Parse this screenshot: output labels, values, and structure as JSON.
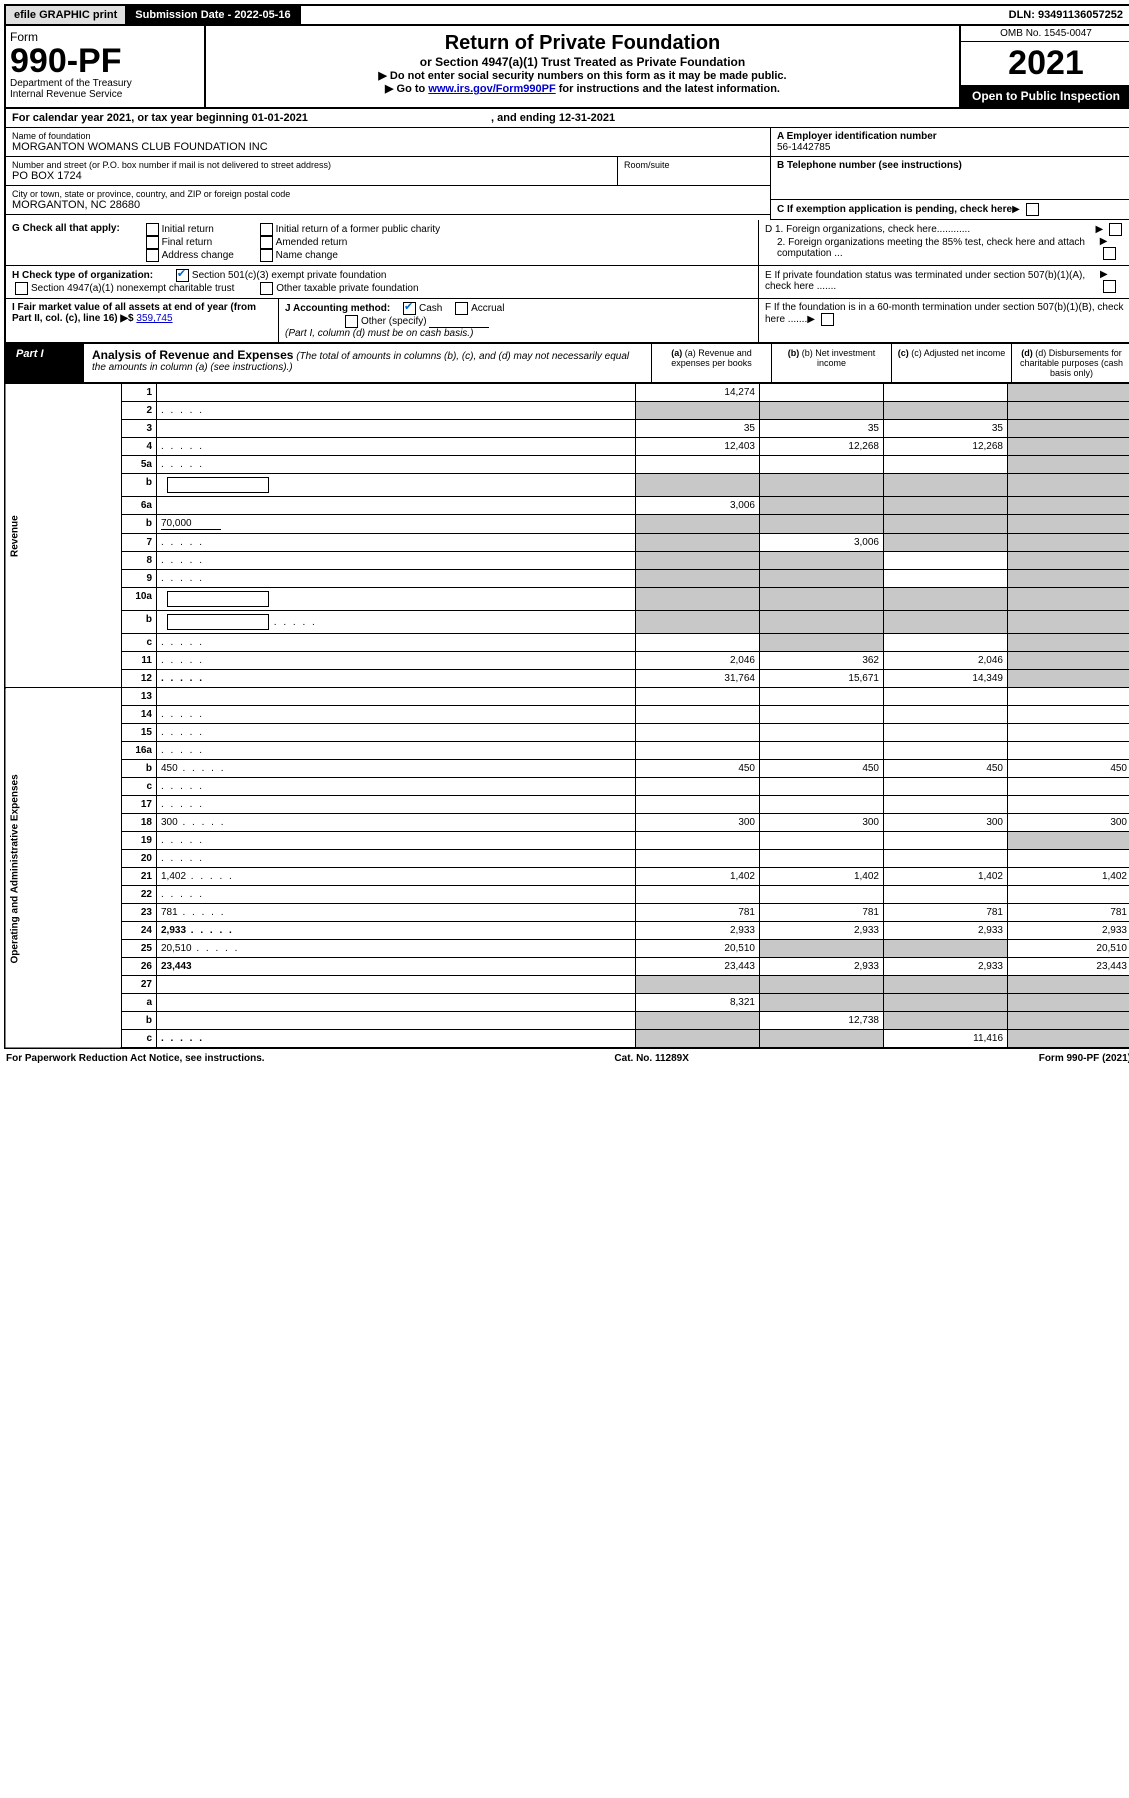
{
  "topbar": {
    "efile": "efile GRAPHIC print",
    "submission": "Submission Date - 2022-05-16",
    "dln": "DLN: 93491136057252"
  },
  "header": {
    "form_word": "Form",
    "form_num": "990-PF",
    "dept": "Department of the Treasury\nInternal Revenue Service",
    "title": "Return of Private Foundation",
    "subtitle": "or Section 4947(a)(1) Trust Treated as Private Foundation",
    "instr1": "▶ Do not enter social security numbers on this form as it may be made public.",
    "instr2_pre": "▶ Go to ",
    "instr2_link": "www.irs.gov/Form990PF",
    "instr2_post": " for instructions and the latest information.",
    "omb": "OMB No. 1545-0047",
    "year": "2021",
    "open": "Open to Public Inspection"
  },
  "calendar": {
    "text_pre": "For calendar year 2021, or tax year beginning ",
    "begin": "01-01-2021",
    "text_mid": " , and ending ",
    "end": "12-31-2021"
  },
  "entity": {
    "name_label": "Name of foundation",
    "name": "MORGANTON WOMANS CLUB FOUNDATION INC",
    "addr_label": "Number and street (or P.O. box number if mail is not delivered to street address)",
    "addr": "PO BOX 1724",
    "room_label": "Room/suite",
    "city_label": "City or town, state or province, country, and ZIP or foreign postal code",
    "city": "MORGANTON, NC  28680",
    "a_label": "A Employer identification number",
    "a_val": "56-1442785",
    "b_label": "B Telephone number (see instructions)",
    "c_label": "C If exemption application is pending, check here",
    "d1": "D 1. Foreign organizations, check here............",
    "d2": "2. Foreign organizations meeting the 85% test, check here and attach computation ...",
    "e": "E  If private foundation status was terminated under section 507(b)(1)(A), check here .......",
    "f": "F  If the foundation is in a 60-month termination under section 507(b)(1)(B), check here .......",
    "g_label": "G Check all that apply:",
    "g_opts": [
      "Initial return",
      "Final return",
      "Address change",
      "Initial return of a former public charity",
      "Amended return",
      "Name change"
    ],
    "h_label": "H Check type of organization:",
    "h_opt1": "Section 501(c)(3) exempt private foundation",
    "h_opt2": "Section 4947(a)(1) nonexempt charitable trust",
    "h_opt3": "Other taxable private foundation",
    "i_label": "I Fair market value of all assets at end of year (from Part II, col. (c), line 16) ▶$ ",
    "i_val": "359,745",
    "j_label": "J Accounting method:",
    "j_cash": "Cash",
    "j_accrual": "Accrual",
    "j_other": "Other (specify)",
    "j_note": "(Part I, column (d) must be on cash basis.)"
  },
  "part1": {
    "tag": "Part I",
    "title": "Analysis of Revenue and Expenses",
    "note": "(The total of amounts in columns (b), (c), and (d) may not necessarily equal the amounts in column (a) (see instructions).)",
    "col_a": "(a)  Revenue and expenses per books",
    "col_b": "(b)  Net investment income",
    "col_c": "(c)  Adjusted net income",
    "col_d": "(d)  Disbursements for charitable purposes (cash basis only)"
  },
  "side": {
    "rev": "Revenue",
    "exp": "Operating and Administrative Expenses"
  },
  "rows": [
    {
      "n": "1",
      "d": "",
      "a": "14,274",
      "b": "",
      "c": "",
      "d_shade": true
    },
    {
      "n": "2",
      "d": "",
      "a": "",
      "b": "",
      "c": "",
      "a_shade": true,
      "b_shade": true,
      "c_shade": true,
      "d_shade": true,
      "dots": true
    },
    {
      "n": "3",
      "d": "",
      "a": "35",
      "b": "35",
      "c": "35",
      "d_shade": true
    },
    {
      "n": "4",
      "d": "",
      "a": "12,403",
      "b": "12,268",
      "c": "12,268",
      "d_shade": true,
      "dots": true
    },
    {
      "n": "5a",
      "d": "",
      "a": "",
      "b": "",
      "c": "",
      "d_shade": true,
      "dots": true
    },
    {
      "n": "b",
      "d": "",
      "a": "",
      "b": "",
      "c": "",
      "a_shade": true,
      "b_shade": true,
      "c_shade": true,
      "d_shade": true,
      "box": true
    },
    {
      "n": "6a",
      "d": "",
      "a": "3,006",
      "b": "",
      "c": "",
      "b_shade": true,
      "c_shade": true,
      "d_shade": true
    },
    {
      "n": "b",
      "d": "",
      "a": "",
      "b": "",
      "c": "",
      "a_shade": true,
      "b_shade": true,
      "c_shade": true,
      "d_shade": true,
      "inline": "70,000"
    },
    {
      "n": "7",
      "d": "",
      "a": "",
      "b": "3,006",
      "c": "",
      "a_shade": true,
      "c_shade": true,
      "d_shade": true,
      "dots": true
    },
    {
      "n": "8",
      "d": "",
      "a": "",
      "b": "",
      "c": "",
      "a_shade": true,
      "b_shade": true,
      "d_shade": true,
      "dots": true
    },
    {
      "n": "9",
      "d": "",
      "a": "",
      "b": "",
      "c": "",
      "a_shade": true,
      "b_shade": true,
      "d_shade": true,
      "dots": true
    },
    {
      "n": "10a",
      "d": "",
      "a": "",
      "b": "",
      "c": "",
      "a_shade": true,
      "b_shade": true,
      "c_shade": true,
      "d_shade": true,
      "box": true
    },
    {
      "n": "b",
      "d": "",
      "a": "",
      "b": "",
      "c": "",
      "a_shade": true,
      "b_shade": true,
      "c_shade": true,
      "d_shade": true,
      "box": true,
      "dots": true
    },
    {
      "n": "c",
      "d": "",
      "a": "",
      "b": "",
      "c": "",
      "b_shade": true,
      "d_shade": true,
      "dots": true
    },
    {
      "n": "11",
      "d": "",
      "a": "2,046",
      "b": "362",
      "c": "2,046",
      "d_shade": true,
      "dots": true
    },
    {
      "n": "12",
      "d": "",
      "a": "31,764",
      "b": "15,671",
      "c": "14,349",
      "d_shade": true,
      "bold": true,
      "dots": true
    }
  ],
  "exp_rows": [
    {
      "n": "13",
      "d": "",
      "a": "",
      "b": "",
      "c": ""
    },
    {
      "n": "14",
      "d": "",
      "a": "",
      "b": "",
      "c": "",
      "dots": true
    },
    {
      "n": "15",
      "d": "",
      "a": "",
      "b": "",
      "c": "",
      "dots": true
    },
    {
      "n": "16a",
      "d": "",
      "a": "",
      "b": "",
      "c": "",
      "dots": true
    },
    {
      "n": "b",
      "d": "450",
      "a": "450",
      "b": "450",
      "c": "450",
      "dots": true
    },
    {
      "n": "c",
      "d": "",
      "a": "",
      "b": "",
      "c": "",
      "dots": true
    },
    {
      "n": "17",
      "d": "",
      "a": "",
      "b": "",
      "c": "",
      "dots": true
    },
    {
      "n": "18",
      "d": "300",
      "a": "300",
      "b": "300",
      "c": "300",
      "dots": true
    },
    {
      "n": "19",
      "d": "",
      "a": "",
      "b": "",
      "c": "",
      "d_shade": true,
      "dots": true
    },
    {
      "n": "20",
      "d": "",
      "a": "",
      "b": "",
      "c": "",
      "dots": true
    },
    {
      "n": "21",
      "d": "1,402",
      "a": "1,402",
      "b": "1,402",
      "c": "1,402",
      "dots": true
    },
    {
      "n": "22",
      "d": "",
      "a": "",
      "b": "",
      "c": "",
      "dots": true
    },
    {
      "n": "23",
      "d": "781",
      "a": "781",
      "b": "781",
      "c": "781",
      "dots": true
    },
    {
      "n": "24",
      "d": "2,933",
      "a": "2,933",
      "b": "2,933",
      "c": "2,933",
      "bold": true,
      "dots": true
    },
    {
      "n": "25",
      "d": "20,510",
      "a": "20,510",
      "b": "",
      "c": "",
      "b_shade": true,
      "c_shade": true,
      "dots": true
    },
    {
      "n": "26",
      "d": "23,443",
      "a": "23,443",
      "b": "2,933",
      "c": "2,933",
      "bold": true
    },
    {
      "n": "27",
      "d": "",
      "a": "",
      "b": "",
      "c": "",
      "a_shade": true,
      "b_shade": true,
      "c_shade": true,
      "d_shade": true
    },
    {
      "n": "a",
      "d": "",
      "a": "8,321",
      "b": "",
      "c": "",
      "b_shade": true,
      "c_shade": true,
      "d_shade": true,
      "bold": true
    },
    {
      "n": "b",
      "d": "",
      "a": "",
      "b": "12,738",
      "c": "",
      "a_shade": true,
      "c_shade": true,
      "d_shade": true,
      "bold": true
    },
    {
      "n": "c",
      "d": "",
      "a": "",
      "b": "",
      "c": "11,416",
      "a_shade": true,
      "b_shade": true,
      "d_shade": true,
      "bold": true,
      "dots": true
    }
  ],
  "footer": {
    "left": "For Paperwork Reduction Act Notice, see instructions.",
    "mid": "Cat. No. 11289X",
    "right": "Form 990-PF (2021)"
  }
}
